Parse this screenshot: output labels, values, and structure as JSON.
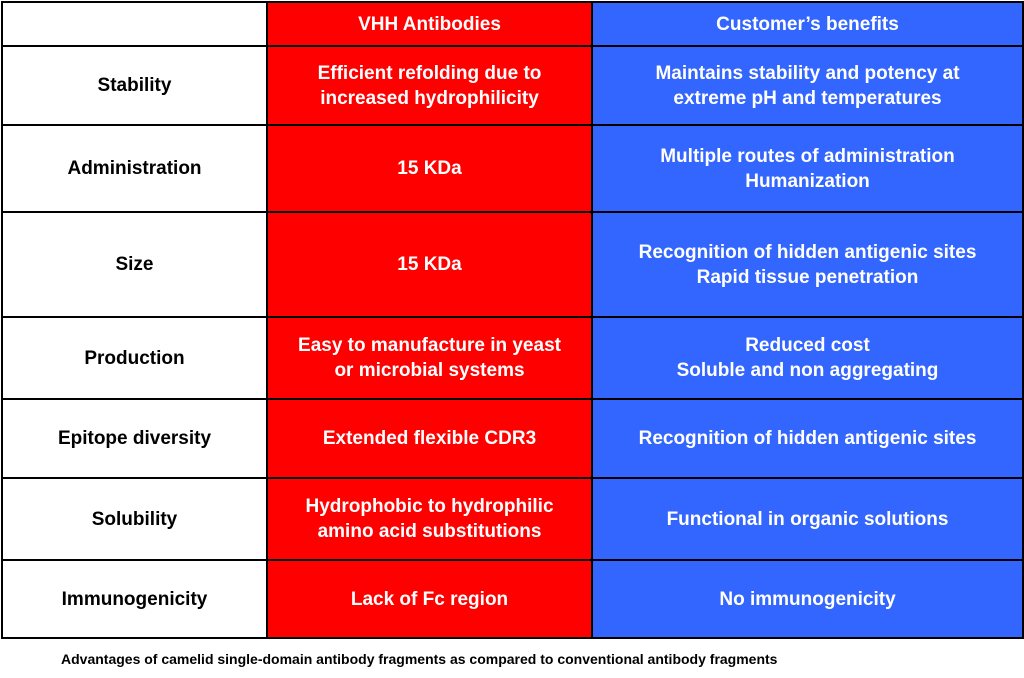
{
  "header": {
    "corner": "",
    "vhh": "VHH Antibodies",
    "benefits": "Customer’s benefits"
  },
  "rows": [
    {
      "property": "Stability",
      "vhh": [
        "Efficient refolding due to",
        "increased hydrophilicity"
      ],
      "benefits": [
        "Maintains stability and potency at",
        "extreme pH and temperatures"
      ]
    },
    {
      "property": "Administration",
      "vhh": [
        "15 KDa"
      ],
      "benefits": [
        "Multiple routes of administration",
        "Humanization"
      ]
    },
    {
      "property": "Size",
      "vhh": [
        "15 KDa"
      ],
      "benefits": [
        "Recognition of hidden antigenic sites",
        "Rapid tissue penetration"
      ]
    },
    {
      "property": "Production",
      "vhh": [
        "Easy to manufacture in yeast",
        "or microbial systems"
      ],
      "benefits": [
        "Reduced cost",
        "Soluble and non aggregating"
      ]
    },
    {
      "property": "Epitope diversity",
      "vhh": [
        "Extended flexible CDR3"
      ],
      "benefits": [
        "Recognition of hidden antigenic sites"
      ]
    },
    {
      "property": "Solubility",
      "vhh": [
        "Hydrophobic to hydrophilic",
        "amino acid substitutions"
      ],
      "benefits": [
        "Functional in organic solutions"
      ]
    },
    {
      "property": "Immunogenicity",
      "vhh": [
        "Lack of Fc region"
      ],
      "benefits": [
        "No immunogenicity"
      ]
    }
  ],
  "caption": "Advantages of camelid single-domain antibody fragments as compared to conventional antibody fragments",
  "colors": {
    "vhh_column": "#ff0000",
    "benefits_column": "#3366ff",
    "label_column": "#ffffff",
    "border": "#000000"
  }
}
